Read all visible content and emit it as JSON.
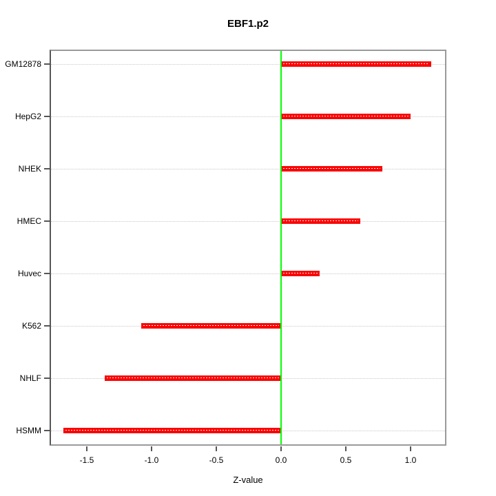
{
  "chart_data": {
    "type": "bar",
    "orientation": "horizontal",
    "title": "EBF1.p2",
    "xlabel": "Z-value",
    "ylabel": "",
    "categories": [
      "GM12878",
      "HepG2",
      "NHEK",
      "HMEC",
      "Huvec",
      "K562",
      "NHLF",
      "HSMM"
    ],
    "values": [
      1.16,
      1.0,
      0.78,
      0.61,
      0.3,
      -1.08,
      -1.36,
      -1.68
    ],
    "x_ticks": [
      {
        "value": -1.5,
        "label": "-1.5"
      },
      {
        "value": -1.0,
        "label": "-1.0"
      },
      {
        "value": -0.5,
        "label": "-0.5"
      },
      {
        "value": 0.0,
        "label": "0.0"
      },
      {
        "value": 0.5,
        "label": "0.5"
      },
      {
        "value": 1.0,
        "label": "1.0"
      }
    ],
    "xlim": [
      -1.79,
      1.28
    ],
    "grid": "horizontal-dotted",
    "legend": "none",
    "zero_reference_line": 0.0,
    "colors": {
      "bar": "#ff0000",
      "zero_line": "#00ff00",
      "grid_line": "#c8c8c8",
      "box_border": "#999999",
      "axis_line": "#555555",
      "text": "#000000",
      "background": "#ffffff"
    }
  }
}
